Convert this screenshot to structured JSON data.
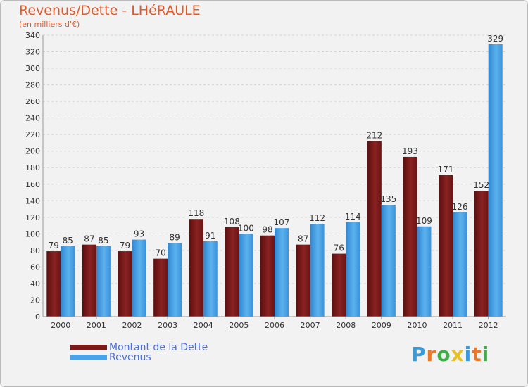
{
  "header": {
    "title": "Revenus/Dette - LHéRAULE",
    "subtitle": "(en milliers d'€)"
  },
  "chart_data": {
    "type": "bar",
    "title": "Revenus/Dette - LHéRAULE",
    "ylabel": "(en milliers d'€)",
    "xlabel": "",
    "categories": [
      "2000",
      "2001",
      "2002",
      "2003",
      "2004",
      "2005",
      "2006",
      "2007",
      "2008",
      "2009",
      "2010",
      "2011",
      "2012"
    ],
    "series": [
      {
        "name": "Montant de la Dette",
        "color": "#7a1a1a",
        "values": [
          79,
          87,
          79,
          70,
          118,
          108,
          98,
          87,
          76,
          212,
          193,
          171,
          152
        ]
      },
      {
        "name": "Revenus",
        "color": "#4aa3e8",
        "values": [
          85,
          85,
          93,
          89,
          91,
          100,
          107,
          112,
          114,
          135,
          109,
          126,
          329
        ]
      }
    ],
    "ylim": [
      0,
      340
    ],
    "yticks": [
      0,
      20,
      40,
      60,
      80,
      100,
      120,
      140,
      160,
      180,
      200,
      220,
      240,
      260,
      280,
      300,
      320,
      340
    ],
    "grid": true,
    "legend": "bottom-left"
  },
  "legend": {
    "items": [
      {
        "label": "Montant de la Dette",
        "color": "#7a1a1a"
      },
      {
        "label": "Revenus",
        "color": "#4aa3e8"
      }
    ]
  },
  "logo": {
    "letters": [
      "P",
      "r",
      "o",
      "x",
      "i",
      "t",
      "i"
    ],
    "colors": [
      "#3a9ad9",
      "#e8792a",
      "#3fae49",
      "#e8c12a",
      "#3a9ad9",
      "#e8792a",
      "#3fae49"
    ]
  }
}
